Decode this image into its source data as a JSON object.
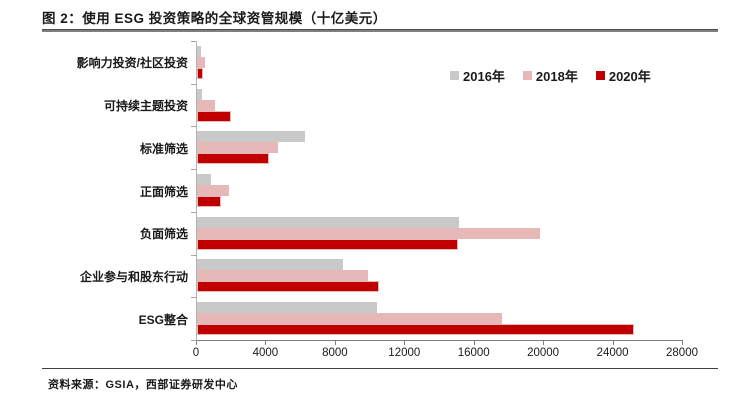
{
  "title": "图 2：使用 ESG 投资策略的全球资管规模（十亿美元）",
  "source_note": "资料来源：GSIA，西部证券研发中心",
  "chart_data": {
    "type": "bar",
    "orientation": "horizontal",
    "title": "使用 ESG 投资策略的全球资管规模（十亿美元）",
    "categories": [
      "影响力投资/社区投资",
      "可持续主题投资",
      "标准筛选",
      "正面筛选",
      "负面筛选",
      "企业参与和股东行动",
      "ESG整合"
    ],
    "series": [
      {
        "name": "2016年",
        "color": "#C9C9C9",
        "values": [
          248,
          276,
          6195,
          818,
          15064,
          8385,
          10353
        ]
      },
      {
        "name": "2018年",
        "color": "#E6B8B7",
        "values": [
          444,
          1018,
          4679,
          1842,
          19771,
          9835,
          17544
        ]
      },
      {
        "name": "2020年",
        "color": "#C00000",
        "border_color": "#E6B8B7",
        "values": [
          352,
          1948,
          4140,
          1384,
          15030,
          10504,
          25195
        ]
      }
    ],
    "xlim": [
      0,
      28000
    ],
    "x_ticks": [
      0,
      4000,
      8000,
      12000,
      16000,
      20000,
      24000,
      28000
    ],
    "grid": "off",
    "legend_position": "top-right",
    "axis_color": "#808080"
  }
}
